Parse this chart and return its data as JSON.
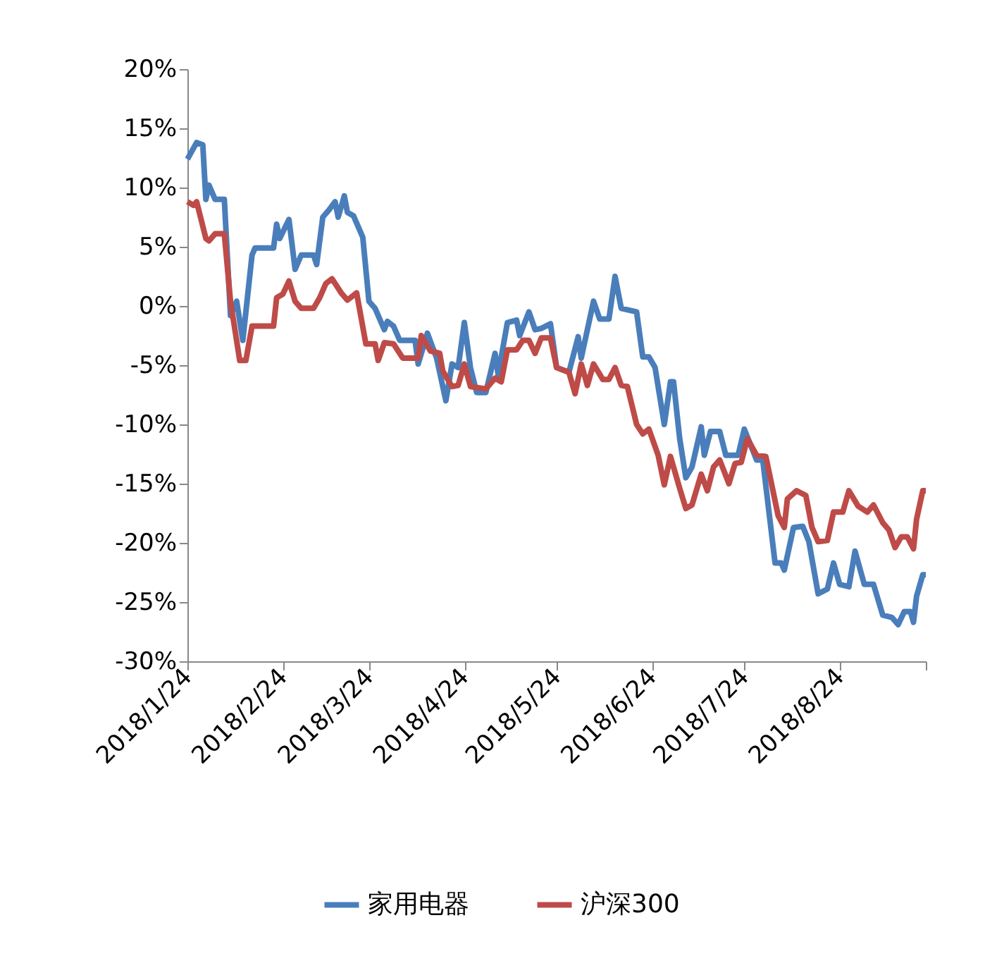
{
  "chart_data": {
    "type": "line",
    "legend": "bottom",
    "grid": false,
    "marker": "none",
    "line_style": "solid",
    "xlim": [
      "2018-01-24",
      "2018-09-21"
    ],
    "xticks": [
      {
        "value": "2018-01-24",
        "label": "2018/1/24"
      },
      {
        "value": "2018-02-24",
        "label": "2018/2/24"
      },
      {
        "value": "2018-03-24",
        "label": "2018/3/24"
      },
      {
        "value": "2018-04-24",
        "label": "2018/4/24"
      },
      {
        "value": "2018-05-24",
        "label": "2018/5/24"
      },
      {
        "value": "2018-06-24",
        "label": "2018/6/24"
      },
      {
        "value": "2018-07-24",
        "label": "2018/7/24"
      },
      {
        "value": "2018-08-24",
        "label": "2018/8/24"
      },
      {
        "value": "2018-09-21",
        "label": null
      }
    ],
    "ylim": [
      -30,
      20
    ],
    "yticks": [
      {
        "value": -30,
        "label": "-30%"
      },
      {
        "value": -25,
        "label": "-25%"
      },
      {
        "value": -20,
        "label": "-20%"
      },
      {
        "value": -15,
        "label": "-15%"
      },
      {
        "value": -10,
        "label": "-10%"
      },
      {
        "value": -5,
        "label": "-5%"
      },
      {
        "value": 0,
        "label": "0%"
      },
      {
        "value": 5,
        "label": "5%"
      },
      {
        "value": 10,
        "label": "10%"
      },
      {
        "value": 15,
        "label": "15%"
      },
      {
        "value": 20,
        "label": "20%"
      }
    ],
    "series": [
      {
        "name": "家用电器",
        "color": "#4a7ebb",
        "x": [
          "2018-01-24",
          "2018-01-27",
          "2018-01-29",
          "2018-01-30",
          "2018-01-31",
          "2018-02-02",
          "2018-02-05",
          "2018-02-07",
          "2018-02-09",
          "2018-02-11",
          "2018-02-14",
          "2018-02-15",
          "2018-02-21",
          "2018-02-22",
          "2018-02-23",
          "2018-02-26",
          "2018-02-28",
          "2018-03-02",
          "2018-03-06",
          "2018-03-07",
          "2018-03-09",
          "2018-03-11",
          "2018-03-13",
          "2018-03-14",
          "2018-03-16",
          "2018-03-17",
          "2018-03-19",
          "2018-03-22",
          "2018-03-24",
          "2018-03-26",
          "2018-03-29",
          "2018-03-30",
          "2018-04-01",
          "2018-04-03",
          "2018-04-08",
          "2018-04-09",
          "2018-04-12",
          "2018-04-15",
          "2018-04-18",
          "2018-04-20",
          "2018-04-22",
          "2018-04-24",
          "2018-04-26",
          "2018-04-28",
          "2018-05-01",
          "2018-05-04",
          "2018-05-05",
          "2018-05-08",
          "2018-05-11",
          "2018-05-12",
          "2018-05-15",
          "2018-05-17",
          "2018-05-19",
          "2018-05-22",
          "2018-05-24",
          "2018-05-28",
          "2018-05-31",
          "2018-06-01",
          "2018-06-05",
          "2018-06-07",
          "2018-06-10",
          "2018-06-12",
          "2018-06-14",
          "2018-06-19",
          "2018-06-21",
          "2018-06-23",
          "2018-06-25",
          "2018-06-28",
          "2018-06-30",
          "2018-07-01",
          "2018-07-03",
          "2018-07-05",
          "2018-07-07",
          "2018-07-10",
          "2018-07-11",
          "2018-07-13",
          "2018-07-16",
          "2018-07-18",
          "2018-07-22",
          "2018-07-24",
          "2018-07-28",
          "2018-07-30",
          "2018-08-03",
          "2018-08-05",
          "2018-08-06",
          "2018-08-09",
          "2018-08-12",
          "2018-08-14",
          "2018-08-17",
          "2018-08-20",
          "2018-08-22",
          "2018-08-24",
          "2018-08-27",
          "2018-08-29",
          "2018-09-01",
          "2018-09-04",
          "2018-09-07",
          "2018-09-10",
          "2018-09-12",
          "2018-09-14",
          "2018-09-16",
          "2018-09-17",
          "2018-09-18",
          "2018-09-20",
          "2018-09-21"
        ],
        "values": [
          12.4,
          13.8,
          13.6,
          9.0,
          10.2,
          9.0,
          9.0,
          -0.8,
          0.4,
          -2.9,
          4.3,
          4.9,
          4.9,
          6.9,
          5.7,
          7.3,
          3.1,
          4.3,
          4.3,
          3.5,
          7.5,
          8.1,
          8.8,
          7.5,
          9.3,
          7.9,
          7.6,
          5.8,
          0.4,
          -0.2,
          -2.0,
          -1.3,
          -1.7,
          -2.9,
          -2.9,
          -4.9,
          -2.3,
          -4.4,
          -8.0,
          -4.9,
          -5.2,
          -1.4,
          -5.2,
          -7.3,
          -7.3,
          -4.0,
          -5.8,
          -1.4,
          -1.2,
          -2.5,
          -0.5,
          -2.0,
          -1.9,
          -1.5,
          -5.2,
          -5.6,
          -2.6,
          -4.4,
          0.4,
          -1.1,
          -1.1,
          2.5,
          -0.2,
          -0.5,
          -4.3,
          -4.3,
          -5.2,
          -10.0,
          -6.4,
          -6.4,
          -11.2,
          -14.5,
          -13.6,
          -10.2,
          -12.6,
          -10.6,
          -10.6,
          -12.6,
          -12.6,
          -10.4,
          -13.0,
          -13.0,
          -21.7,
          -21.7,
          -22.3,
          -18.7,
          -18.6,
          -19.9,
          -24.3,
          -23.9,
          -21.7,
          -23.5,
          -23.7,
          -20.7,
          -23.5,
          -23.5,
          -26.1,
          -26.3,
          -26.9,
          -25.8,
          -25.8,
          -26.7,
          -24.5,
          -22.7,
          -22.7
        ]
      },
      {
        "name": "沪深300",
        "color": "#be4b48",
        "x": [
          "2018-01-24",
          "2018-01-26",
          "2018-01-27",
          "2018-01-30",
          "2018-01-31",
          "2018-02-02",
          "2018-02-05",
          "2018-02-07",
          "2018-02-10",
          "2018-02-12",
          "2018-02-14",
          "2018-02-21",
          "2018-02-22",
          "2018-02-24",
          "2018-02-26",
          "2018-02-28",
          "2018-03-02",
          "2018-03-06",
          "2018-03-08",
          "2018-03-10",
          "2018-03-12",
          "2018-03-15",
          "2018-03-17",
          "2018-03-20",
          "2018-03-23",
          "2018-03-26",
          "2018-03-27",
          "2018-03-29",
          "2018-04-01",
          "2018-04-04",
          "2018-04-09",
          "2018-04-10",
          "2018-04-13",
          "2018-04-16",
          "2018-04-17",
          "2018-04-20",
          "2018-04-22",
          "2018-04-24",
          "2018-04-26",
          "2018-05-01",
          "2018-05-04",
          "2018-05-06",
          "2018-05-08",
          "2018-05-11",
          "2018-05-13",
          "2018-05-15",
          "2018-05-17",
          "2018-05-19",
          "2018-05-22",
          "2018-05-24",
          "2018-05-28",
          "2018-05-30",
          "2018-06-01",
          "2018-06-03",
          "2018-06-05",
          "2018-06-08",
          "2018-06-10",
          "2018-06-12",
          "2018-06-14",
          "2018-06-16",
          "2018-06-19",
          "2018-06-21",
          "2018-06-23",
          "2018-06-26",
          "2018-06-28",
          "2018-06-30",
          "2018-07-01",
          "2018-07-03",
          "2018-07-05",
          "2018-07-07",
          "2018-07-10",
          "2018-07-12",
          "2018-07-14",
          "2018-07-16",
          "2018-07-19",
          "2018-07-21",
          "2018-07-23",
          "2018-07-25",
          "2018-07-28",
          "2018-07-31",
          "2018-08-04",
          "2018-08-06",
          "2018-08-07",
          "2018-08-10",
          "2018-08-13",
          "2018-08-15",
          "2018-08-17",
          "2018-08-20",
          "2018-08-22",
          "2018-08-25",
          "2018-08-27",
          "2018-08-30",
          "2018-09-02",
          "2018-09-04",
          "2018-09-07",
          "2018-09-09",
          "2018-09-11",
          "2018-09-13",
          "2018-09-15",
          "2018-09-17",
          "2018-09-18",
          "2018-09-20",
          "2018-09-21"
        ],
        "values": [
          8.8,
          8.5,
          8.8,
          5.7,
          5.5,
          6.1,
          6.1,
          0.4,
          -4.6,
          -4.6,
          -1.7,
          -1.7,
          0.7,
          1.0,
          2.1,
          0.4,
          -0.2,
          -0.2,
          0.7,
          1.9,
          2.3,
          1.1,
          0.5,
          1.1,
          -3.2,
          -3.2,
          -4.6,
          -3.1,
          -3.2,
          -4.4,
          -4.4,
          -2.5,
          -3.8,
          -4.0,
          -5.5,
          -6.8,
          -6.7,
          -4.9,
          -6.8,
          -7.0,
          -6.1,
          -6.4,
          -3.7,
          -3.7,
          -2.9,
          -2.9,
          -4.0,
          -2.7,
          -2.7,
          -5.2,
          -5.6,
          -7.4,
          -4.9,
          -6.7,
          -4.9,
          -6.2,
          -6.2,
          -5.2,
          -6.7,
          -6.8,
          -10.0,
          -10.8,
          -10.4,
          -12.6,
          -15.1,
          -12.7,
          -13.6,
          -15.4,
          -17.1,
          -16.8,
          -14.2,
          -15.6,
          -13.6,
          -13.0,
          -15.0,
          -13.3,
          -13.2,
          -11.2,
          -12.6,
          -12.7,
          -17.7,
          -18.7,
          -16.3,
          -15.6,
          -16.0,
          -18.7,
          -19.9,
          -19.8,
          -17.4,
          -17.4,
          -15.6,
          -16.9,
          -17.4,
          -16.8,
          -18.3,
          -18.9,
          -20.4,
          -19.5,
          -19.5,
          -20.5,
          -18.0,
          -15.6,
          -15.6
        ]
      }
    ]
  }
}
